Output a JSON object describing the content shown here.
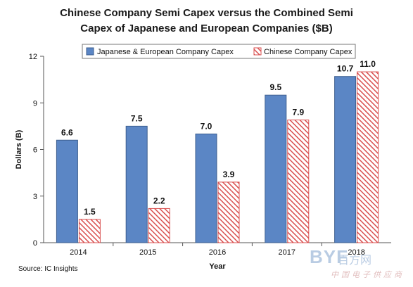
{
  "chart_data": {
    "type": "bar",
    "title_line1": "Chinese Company Semi Capex versus the Combined Semi",
    "title_line2": "Capex of Japanese and European Companies ($B)",
    "xlabel": "Year",
    "ylabel": "Dollars (B)",
    "ylim": [
      0,
      12
    ],
    "yticks": [
      "0",
      "3",
      "6",
      "9",
      "12"
    ],
    "ytick_values": [
      0,
      3,
      6,
      9,
      12
    ],
    "categories": [
      "2014",
      "2015",
      "2016",
      "2017",
      "2018"
    ],
    "legend_position": "top-right",
    "grid": false,
    "series": [
      {
        "name": "Japanese & European Company Capex",
        "values": [
          6.6,
          7.5,
          7.0,
          9.5,
          10.7
        ],
        "labels": [
          "6.6",
          "7.5",
          "7.0",
          "9.5",
          "10.7"
        ],
        "color": "#5b86c5",
        "pattern": "solid"
      },
      {
        "name": "Chinese Company Capex",
        "values": [
          1.5,
          2.2,
          3.9,
          7.9,
          11.0
        ],
        "labels": [
          "1.5",
          "2.2",
          "3.9",
          "7.9",
          "11.0"
        ],
        "color": "#d94f4f",
        "pattern": "hatched"
      }
    ]
  },
  "source": "Source: IC Insights",
  "watermark": {
    "logo": "BYF",
    "sub": "百方网",
    "cn": "中国电子供应商"
  }
}
